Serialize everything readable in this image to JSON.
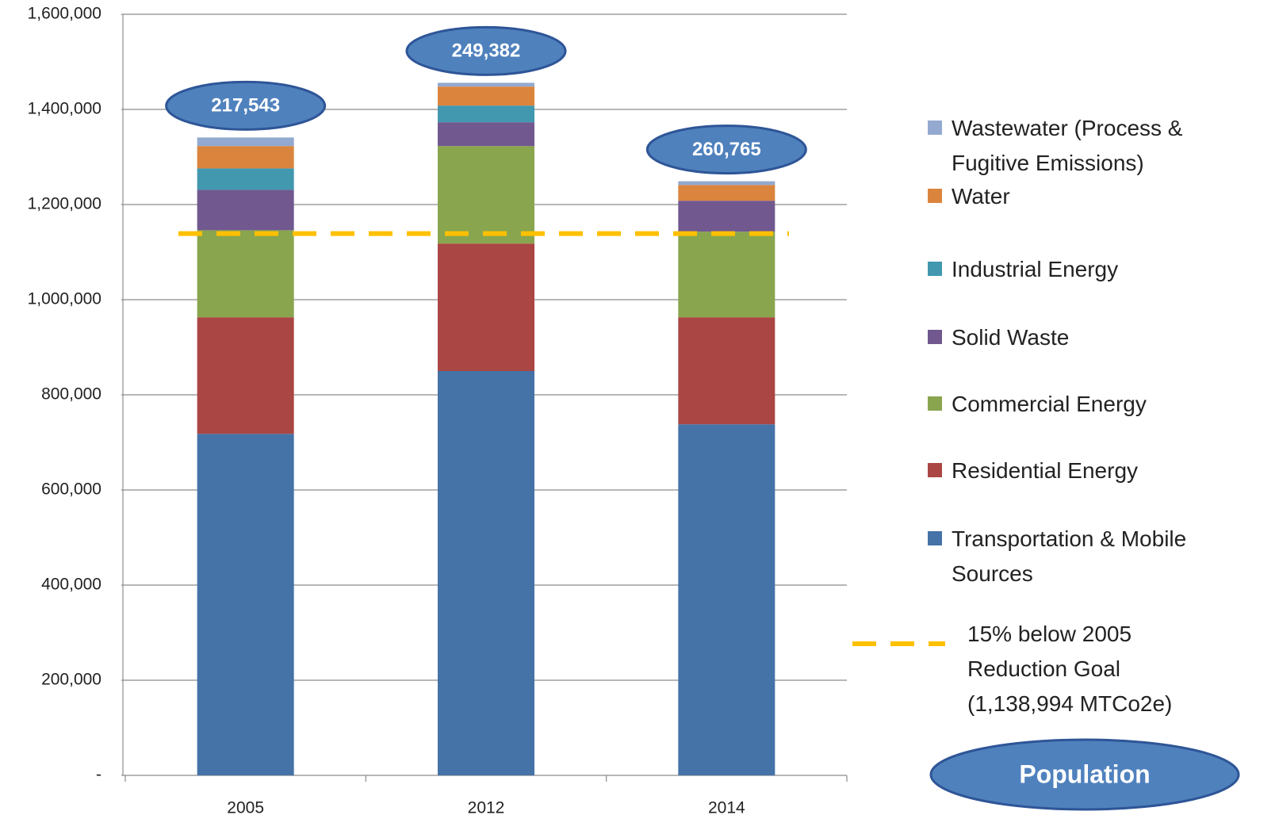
{
  "chart_data": {
    "type": "stacked_bar",
    "categories": [
      "2005",
      "2012",
      "2014"
    ],
    "series": [
      {
        "name": "Transportation & Mobile Sources",
        "color": "#4572a7",
        "values": [
          718000,
          850000,
          738000
        ]
      },
      {
        "name": "Residential Energy",
        "color": "#aa4643",
        "values": [
          245000,
          268000,
          225000
        ]
      },
      {
        "name": "Commercial Energy",
        "color": "#89a54e",
        "values": [
          183000,
          205000,
          180000
        ]
      },
      {
        "name": "Solid Waste",
        "color": "#71588f",
        "values": [
          85000,
          50000,
          65000
        ]
      },
      {
        "name": "Industrial Energy",
        "color": "#4198af",
        "values": [
          45000,
          35000,
          0
        ]
      },
      {
        "name": "Water",
        "color": "#db843d",
        "values": [
          47000,
          40000,
          33000
        ]
      },
      {
        "name": "Wastewater (Process & Fugitive Emissions)",
        "color": "#93a9cf",
        "values": [
          18000,
          8000,
          8000
        ]
      }
    ],
    "goal": {
      "name": "15% below 2005 Reduction Goal (1,138,994 MTCo2e)",
      "value": 1138994,
      "color": "#ffc000"
    },
    "population_labels": [
      "217,543",
      "249,382",
      "260,765"
    ],
    "population_title": "Population",
    "ylim": [
      0,
      1600000
    ],
    "yticks": [
      {
        "value": 0,
        "label": "-"
      },
      {
        "value": 200000,
        "label": "200,000"
      },
      {
        "value": 400000,
        "label": "400,000"
      },
      {
        "value": 600000,
        "label": "600,000"
      },
      {
        "value": 800000,
        "label": "800,000"
      },
      {
        "value": 1000000,
        "label": "1,000,000"
      },
      {
        "value": 1200000,
        "label": "1,200,000"
      },
      {
        "value": 1400000,
        "label": "1,400,000"
      },
      {
        "value": 1600000,
        "label": "1,600,000"
      }
    ],
    "grid": true
  }
}
